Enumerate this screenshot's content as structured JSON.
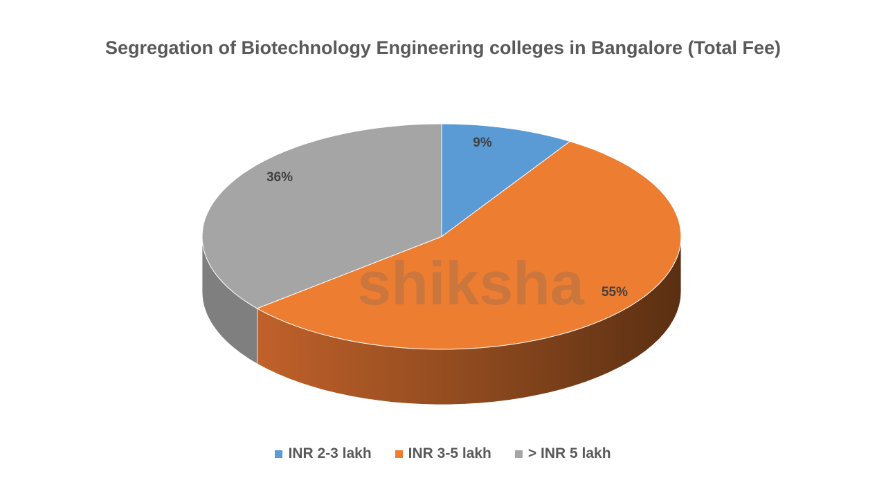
{
  "chart_data": {
    "type": "pie",
    "title": "Segregation of Biotechnology Engineering colleges in Bangalore (Total Fee)",
    "categories": [
      "INR 2-3 lakh",
      "INR 3-5 lakh",
      "> INR 5 lakh"
    ],
    "values": [
      9,
      55,
      36
    ],
    "data_labels": [
      "9%",
      "55%",
      "36%"
    ],
    "colors": [
      "#5B9BD5",
      "#ED7D31",
      "#A5A5A5"
    ],
    "style": "3d",
    "legend_position": "bottom"
  },
  "watermark": "shiksha"
}
